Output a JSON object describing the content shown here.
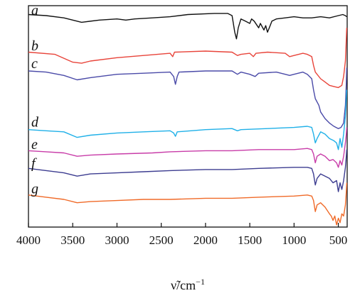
{
  "chart_data": {
    "type": "line",
    "xlabel": "ν̃/cm",
    "xlabel_sup": "−1",
    "x_reversed": true,
    "xlim": [
      4000,
      400
    ],
    "x_ticks": [
      4000,
      3500,
      3000,
      2500,
      2000,
      1500,
      1000,
      500
    ],
    "x_tick_labels": [
      "4000",
      "3500",
      "3000",
      "2500",
      "2000",
      "1500",
      "1000",
      "500"
    ],
    "grid": false,
    "legend": "none",
    "y_axis": "none",
    "series": [
      {
        "name": "a",
        "color": "#111111",
        "baseline": 0.945,
        "points": [
          [
            4000,
            0.96
          ],
          [
            3800,
            0.955
          ],
          [
            3600,
            0.945
          ],
          [
            3400,
            0.925
          ],
          [
            3200,
            0.935
          ],
          [
            3000,
            0.94
          ],
          [
            2900,
            0.935
          ],
          [
            2800,
            0.94
          ],
          [
            2600,
            0.945
          ],
          [
            2400,
            0.95
          ],
          [
            2200,
            0.96
          ],
          [
            1900,
            0.965
          ],
          [
            1750,
            0.965
          ],
          [
            1700,
            0.955
          ],
          [
            1670,
            0.88
          ],
          [
            1650,
            0.85
          ],
          [
            1630,
            0.9
          ],
          [
            1600,
            0.94
          ],
          [
            1550,
            0.93
          ],
          [
            1500,
            0.92
          ],
          [
            1480,
            0.94
          ],
          [
            1450,
            0.93
          ],
          [
            1400,
            0.9
          ],
          [
            1380,
            0.92
          ],
          [
            1340,
            0.89
          ],
          [
            1320,
            0.91
          ],
          [
            1300,
            0.88
          ],
          [
            1280,
            0.9
          ],
          [
            1250,
            0.93
          ],
          [
            1200,
            0.94
          ],
          [
            1100,
            0.945
          ],
          [
            1000,
            0.95
          ],
          [
            900,
            0.945
          ],
          [
            800,
            0.945
          ],
          [
            700,
            0.95
          ],
          [
            600,
            0.945
          ],
          [
            500,
            0.955
          ],
          [
            450,
            0.96
          ],
          [
            420,
            0.955
          ],
          [
            405,
            0.95
          ]
        ]
      },
      {
        "name": "b",
        "color": "#e8443a",
        "baseline": 0.785,
        "points": [
          [
            4000,
            0.79
          ],
          [
            3700,
            0.78
          ],
          [
            3500,
            0.745
          ],
          [
            3400,
            0.74
          ],
          [
            3300,
            0.75
          ],
          [
            3000,
            0.765
          ],
          [
            2700,
            0.775
          ],
          [
            2400,
            0.785
          ],
          [
            2370,
            0.77
          ],
          [
            2350,
            0.79
          ],
          [
            2000,
            0.795
          ],
          [
            1700,
            0.79
          ],
          [
            1640,
            0.775
          ],
          [
            1600,
            0.78
          ],
          [
            1500,
            0.785
          ],
          [
            1460,
            0.77
          ],
          [
            1430,
            0.785
          ],
          [
            1300,
            0.79
          ],
          [
            1100,
            0.785
          ],
          [
            1050,
            0.77
          ],
          [
            1000,
            0.775
          ],
          [
            900,
            0.785
          ],
          [
            850,
            0.78
          ],
          [
            800,
            0.77
          ],
          [
            780,
            0.73
          ],
          [
            760,
            0.7
          ],
          [
            700,
            0.67
          ],
          [
            650,
            0.655
          ],
          [
            600,
            0.64
          ],
          [
            550,
            0.635
          ],
          [
            500,
            0.63
          ],
          [
            460,
            0.64
          ],
          [
            440,
            0.68
          ],
          [
            420,
            0.75
          ],
          [
            410,
            0.85
          ],
          [
            405,
            0.9
          ]
        ]
      },
      {
        "name": "c",
        "color": "#4a4aa8",
        "baseline": 0.705,
        "points": [
          [
            4000,
            0.705
          ],
          [
            3800,
            0.7
          ],
          [
            3600,
            0.685
          ],
          [
            3450,
            0.665
          ],
          [
            3300,
            0.675
          ],
          [
            3000,
            0.69
          ],
          [
            2700,
            0.695
          ],
          [
            2400,
            0.7
          ],
          [
            2360,
            0.68
          ],
          [
            2340,
            0.645
          ],
          [
            2320,
            0.68
          ],
          [
            2300,
            0.7
          ],
          [
            2000,
            0.705
          ],
          [
            1700,
            0.705
          ],
          [
            1640,
            0.69
          ],
          [
            1600,
            0.7
          ],
          [
            1500,
            0.69
          ],
          [
            1440,
            0.68
          ],
          [
            1400,
            0.695
          ],
          [
            1200,
            0.7
          ],
          [
            1100,
            0.69
          ],
          [
            1050,
            0.685
          ],
          [
            1000,
            0.69
          ],
          [
            900,
            0.7
          ],
          [
            850,
            0.69
          ],
          [
            800,
            0.67
          ],
          [
            780,
            0.62
          ],
          [
            760,
            0.58
          ],
          [
            720,
            0.55
          ],
          [
            700,
            0.52
          ],
          [
            650,
            0.49
          ],
          [
            600,
            0.47
          ],
          [
            550,
            0.455
          ],
          [
            500,
            0.445
          ],
          [
            470,
            0.45
          ],
          [
            440,
            0.47
          ],
          [
            420,
            0.55
          ],
          [
            410,
            0.65
          ],
          [
            405,
            0.72
          ]
        ]
      },
      {
        "name": "d",
        "color": "#1fb0e8",
        "baseline": 0.44,
        "points": [
          [
            4000,
            0.44
          ],
          [
            3800,
            0.435
          ],
          [
            3600,
            0.43
          ],
          [
            3450,
            0.405
          ],
          [
            3300,
            0.415
          ],
          [
            3000,
            0.425
          ],
          [
            2700,
            0.43
          ],
          [
            2400,
            0.435
          ],
          [
            2360,
            0.425
          ],
          [
            2340,
            0.41
          ],
          [
            2320,
            0.43
          ],
          [
            2000,
            0.44
          ],
          [
            1700,
            0.445
          ],
          [
            1640,
            0.435
          ],
          [
            1600,
            0.44
          ],
          [
            1300,
            0.445
          ],
          [
            1000,
            0.45
          ],
          [
            850,
            0.455
          ],
          [
            800,
            0.45
          ],
          [
            780,
            0.42
          ],
          [
            760,
            0.38
          ],
          [
            740,
            0.4
          ],
          [
            700,
            0.43
          ],
          [
            650,
            0.42
          ],
          [
            600,
            0.4
          ],
          [
            550,
            0.39
          ],
          [
            520,
            0.38
          ],
          [
            500,
            0.35
          ],
          [
            480,
            0.4
          ],
          [
            460,
            0.36
          ],
          [
            440,
            0.42
          ],
          [
            420,
            0.5
          ],
          [
            410,
            0.58
          ],
          [
            405,
            0.62
          ]
        ]
      },
      {
        "name": "e",
        "color": "#c83ca8",
        "baseline": 0.34,
        "points": [
          [
            4000,
            0.345
          ],
          [
            3800,
            0.34
          ],
          [
            3600,
            0.335
          ],
          [
            3450,
            0.32
          ],
          [
            3300,
            0.325
          ],
          [
            3000,
            0.33
          ],
          [
            2600,
            0.335
          ],
          [
            2400,
            0.34
          ],
          [
            2000,
            0.345
          ],
          [
            1700,
            0.345
          ],
          [
            1400,
            0.35
          ],
          [
            1000,
            0.35
          ],
          [
            850,
            0.355
          ],
          [
            800,
            0.35
          ],
          [
            780,
            0.33
          ],
          [
            760,
            0.29
          ],
          [
            740,
            0.32
          ],
          [
            700,
            0.33
          ],
          [
            650,
            0.32
          ],
          [
            600,
            0.3
          ],
          [
            560,
            0.305
          ],
          [
            520,
            0.29
          ],
          [
            500,
            0.27
          ],
          [
            480,
            0.3
          ],
          [
            460,
            0.28
          ],
          [
            440,
            0.32
          ],
          [
            420,
            0.38
          ],
          [
            410,
            0.42
          ],
          [
            405,
            0.45
          ]
        ]
      },
      {
        "name": "f",
        "color": "#3c3c90",
        "baseline": 0.255,
        "points": [
          [
            4000,
            0.265
          ],
          [
            3800,
            0.255
          ],
          [
            3600,
            0.245
          ],
          [
            3450,
            0.23
          ],
          [
            3300,
            0.24
          ],
          [
            3000,
            0.245
          ],
          [
            2700,
            0.25
          ],
          [
            2400,
            0.255
          ],
          [
            2000,
            0.26
          ],
          [
            1700,
            0.26
          ],
          [
            1400,
            0.265
          ],
          [
            1000,
            0.27
          ],
          [
            850,
            0.27
          ],
          [
            800,
            0.265
          ],
          [
            780,
            0.24
          ],
          [
            760,
            0.19
          ],
          [
            740,
            0.22
          ],
          [
            700,
            0.24
          ],
          [
            650,
            0.23
          ],
          [
            600,
            0.22
          ],
          [
            560,
            0.2
          ],
          [
            520,
            0.21
          ],
          [
            500,
            0.16
          ],
          [
            480,
            0.2
          ],
          [
            460,
            0.17
          ],
          [
            440,
            0.21
          ],
          [
            420,
            0.27
          ],
          [
            410,
            0.32
          ],
          [
            405,
            0.35
          ]
        ]
      },
      {
        "name": "g",
        "color": "#f06a28",
        "baseline": 0.14,
        "points": [
          [
            4000,
            0.145
          ],
          [
            3800,
            0.135
          ],
          [
            3600,
            0.125
          ],
          [
            3450,
            0.11
          ],
          [
            3300,
            0.115
          ],
          [
            3000,
            0.12
          ],
          [
            2700,
            0.125
          ],
          [
            2400,
            0.125
          ],
          [
            2000,
            0.13
          ],
          [
            1700,
            0.13
          ],
          [
            1400,
            0.135
          ],
          [
            1000,
            0.14
          ],
          [
            850,
            0.145
          ],
          [
            800,
            0.14
          ],
          [
            780,
            0.12
          ],
          [
            760,
            0.07
          ],
          [
            740,
            0.1
          ],
          [
            700,
            0.11
          ],
          [
            650,
            0.09
          ],
          [
            600,
            0.06
          ],
          [
            580,
            0.05
          ],
          [
            560,
            0.03
          ],
          [
            540,
            0.05
          ],
          [
            520,
            0.01
          ],
          [
            500,
            0.04
          ],
          [
            480,
            0.02
          ],
          [
            460,
            0.06
          ],
          [
            440,
            0.05
          ],
          [
            420,
            0.1
          ],
          [
            410,
            0.16
          ],
          [
            405,
            0.2
          ]
        ]
      }
    ]
  }
}
